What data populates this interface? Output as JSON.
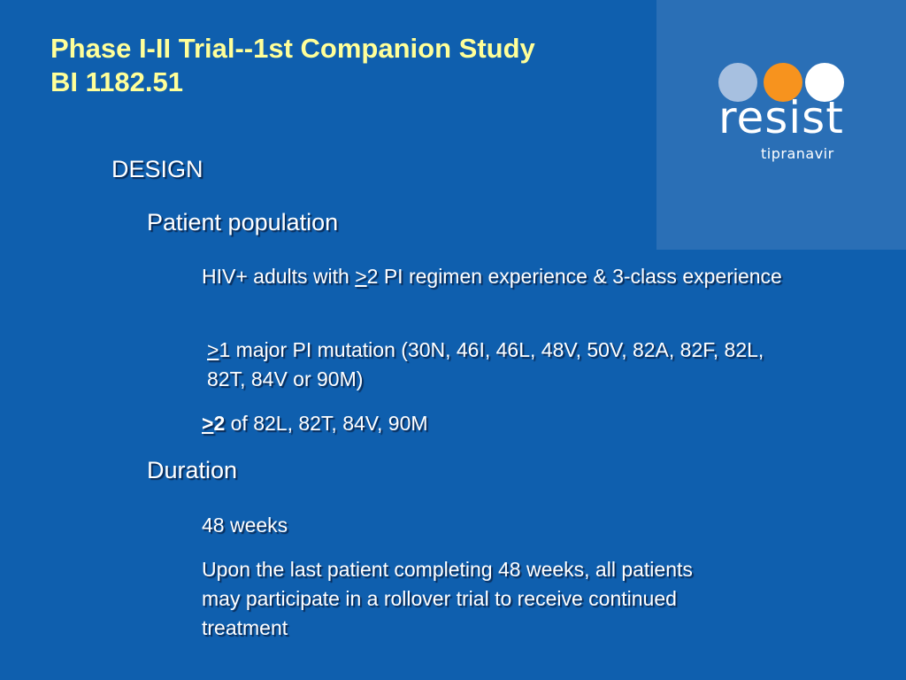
{
  "title": {
    "line1": "Phase I-II Trial--1st Companion Study",
    "line2": "BI 1182.51"
  },
  "logo": {
    "word": "resist",
    "sub": "tipranavir",
    "colors": [
      "#a7c0e0",
      "#f7931e",
      "#ffffff"
    ]
  },
  "content": {
    "design_heading": "DESIGN",
    "patient_population": {
      "heading": "Patient population",
      "bullet1": {
        "pre": "HIV+ adults with ",
        "sym": ">",
        "rest": "2 PI regimen experience & 3-class experience"
      },
      "bullet2": {
        "sym": ">",
        "rest": "1 major PI mutation (30N, 46I, 46L, 48V, 50V, 82A, 82F, 82L, 82T, 84V or 90M)"
      },
      "bullet3": {
        "sym": ">",
        "num": "2",
        "rest": " of 82L, 82T, 84V, 90M"
      }
    },
    "duration": {
      "heading": "Duration",
      "bullet1": "48 weeks",
      "bullet2": "Upon the last patient completing 48 weeks, all patients may participate in a rollover trial to receive continued treatment"
    }
  }
}
